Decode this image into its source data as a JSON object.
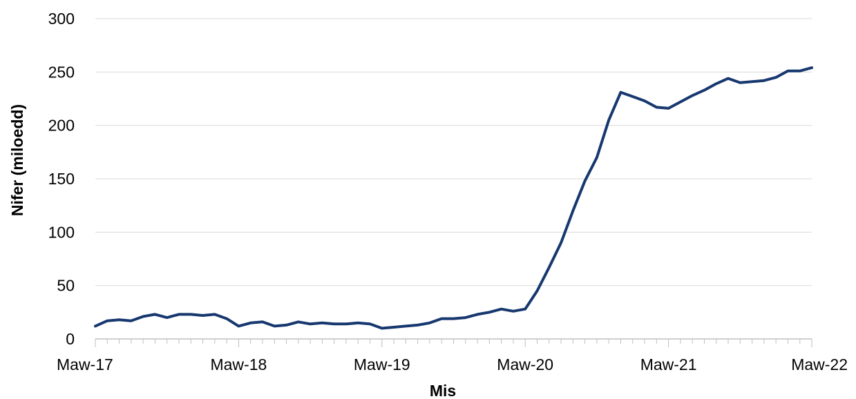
{
  "chart_data": {
    "type": "line",
    "title": "",
    "xlabel": "Mis",
    "ylabel": "Nifer (miloedd)",
    "ylim": [
      0,
      300
    ],
    "yticks": [
      0,
      50,
      100,
      150,
      200,
      250,
      300
    ],
    "xtick_labels": [
      "Maw-17",
      "Maw-18",
      "Maw-19",
      "Maw-20",
      "Maw-21",
      "Maw-22"
    ],
    "x_start": "Maw-17",
    "x_end": "Maw-22",
    "grid": "horizontal",
    "legend": "none",
    "line_color": "#17386f",
    "series": [
      {
        "values": [
          12,
          17,
          18,
          17,
          21,
          23,
          20,
          23,
          23,
          22,
          23,
          19,
          12,
          15,
          16,
          12,
          13,
          16,
          14,
          15,
          14,
          14,
          15,
          14,
          10,
          11,
          12,
          13,
          15,
          19,
          19,
          20,
          23,
          25,
          28,
          26,
          28,
          45,
          67,
          90,
          120,
          148,
          170,
          205,
          231,
          227,
          223,
          217,
          216,
          222,
          228,
          233,
          239,
          244,
          240,
          241,
          242,
          245,
          251,
          251,
          254
        ]
      }
    ]
  }
}
